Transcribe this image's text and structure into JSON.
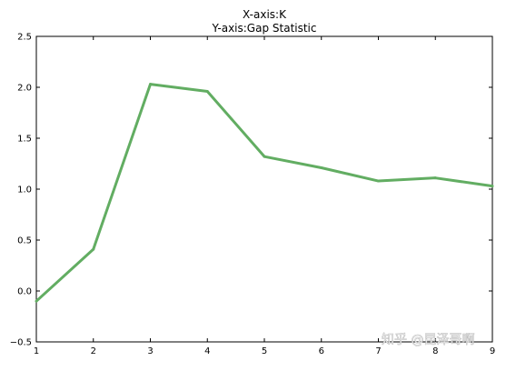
{
  "chart_data": {
    "type": "line",
    "title_lines": [
      "X-axis:K",
      "Y-axis:Gap Statistic"
    ],
    "xlabel": "",
    "ylabel": "",
    "xlim": [
      1,
      9
    ],
    "ylim": [
      -0.5,
      2.5
    ],
    "xticks": [
      "1",
      "2",
      "3",
      "4",
      "5",
      "6",
      "7",
      "8",
      "9"
    ],
    "yticks": [
      "−0.5",
      "0.0",
      "0.5",
      "1.0",
      "1.5",
      "2.0",
      "2.5"
    ],
    "grid": false,
    "x": [
      1,
      2,
      3,
      4,
      5,
      6,
      7,
      8,
      9
    ],
    "series": [
      {
        "values": [
          -0.1,
          0.41,
          2.03,
          1.96,
          1.32,
          1.21,
          1.08,
          1.11,
          1.03
        ],
        "color": "#62ad62"
      }
    ]
  },
  "watermark": "知乎 @昆泽哥啊"
}
